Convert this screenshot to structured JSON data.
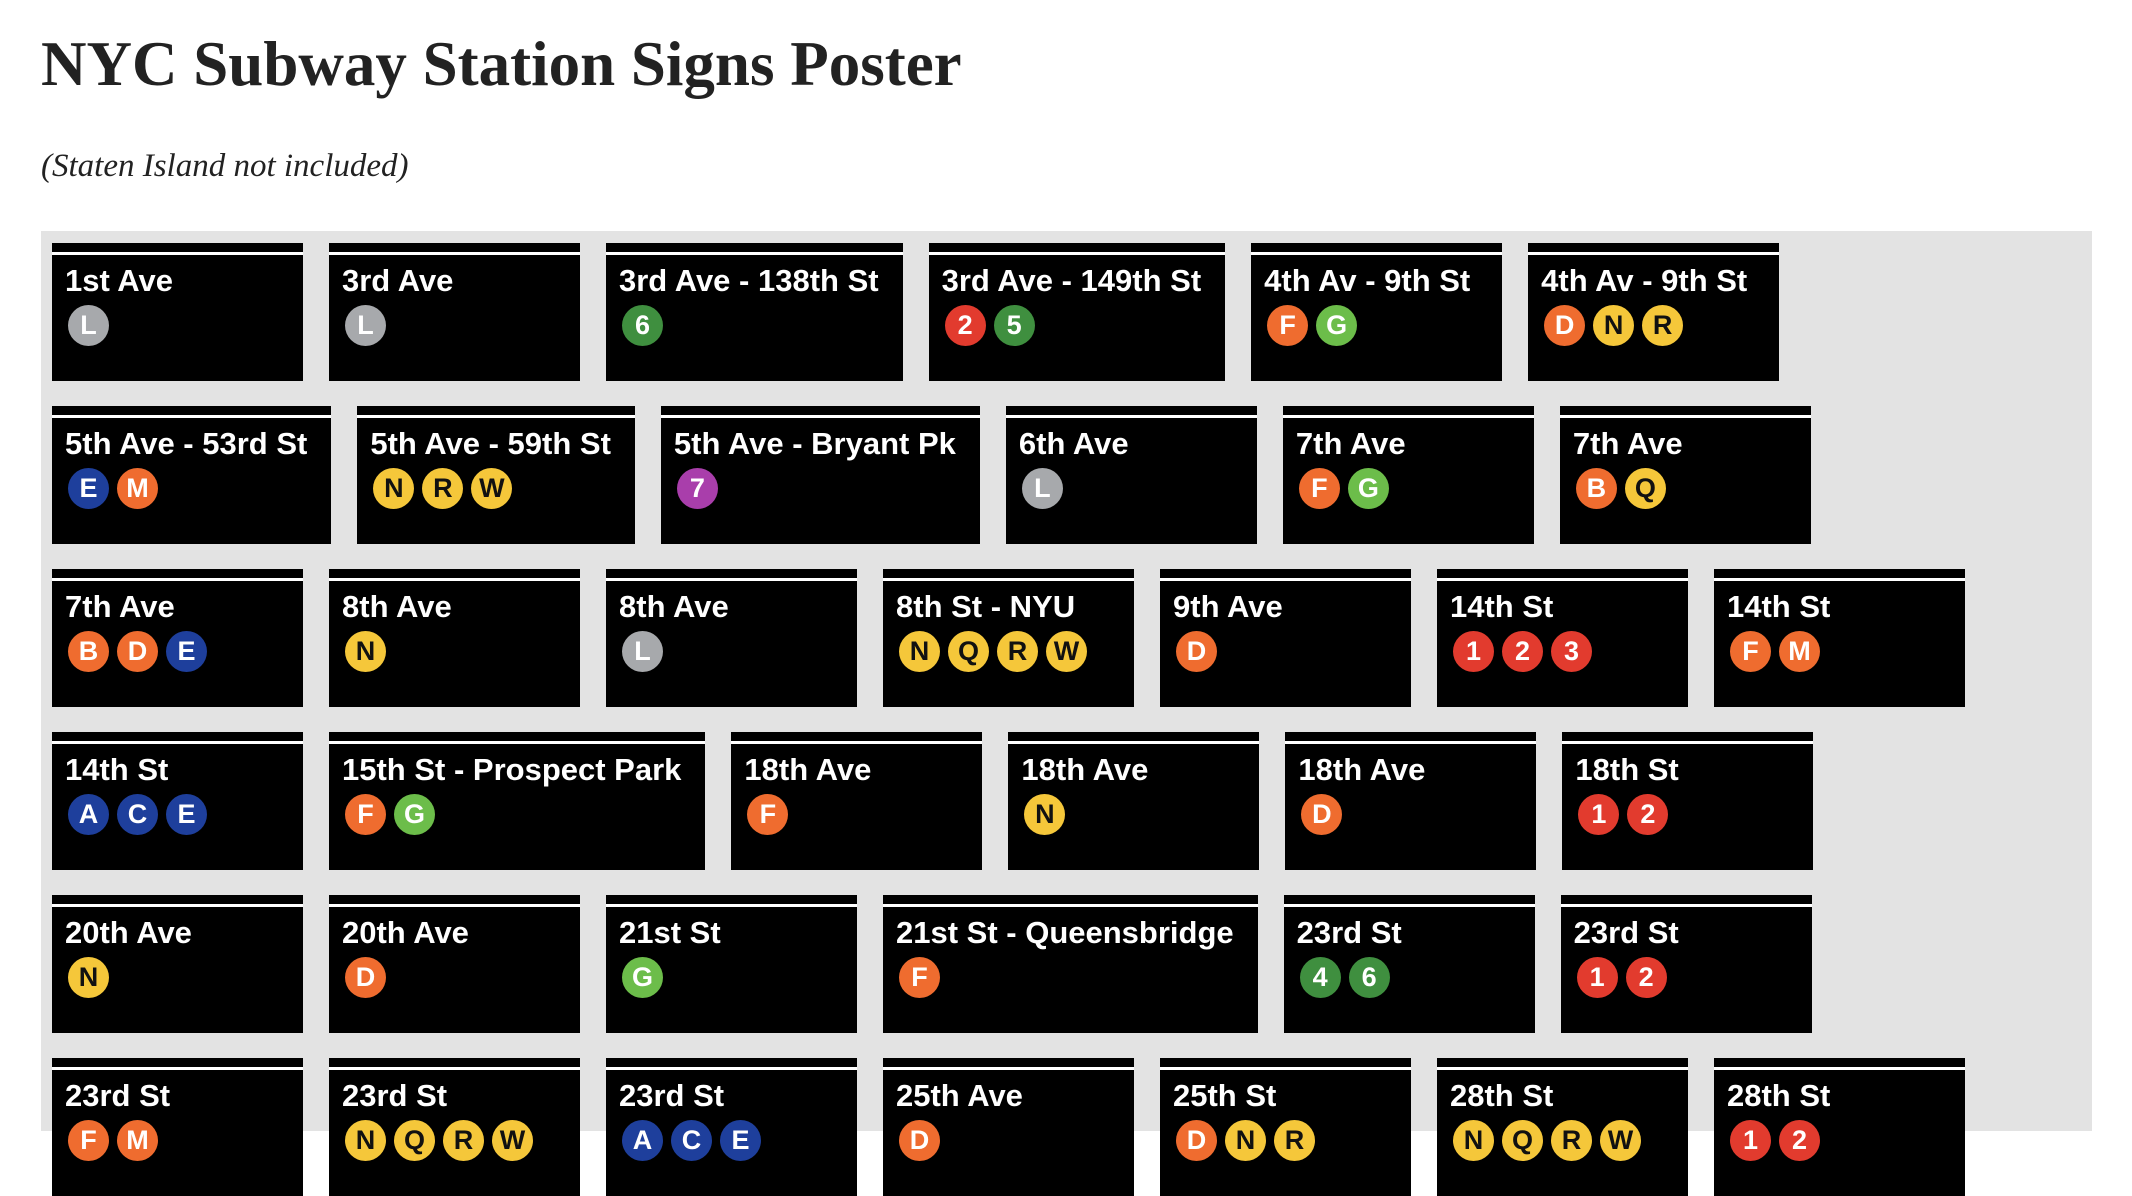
{
  "header": {
    "title": "NYC Subway Station Signs Poster",
    "subtitle": "(Staten Island not included)"
  },
  "line_colors": {
    "L": "#a7a9ac",
    "1": "#e23b2e",
    "2": "#e23b2e",
    "3": "#e23b2e",
    "4": "#3f8f3f",
    "5": "#3f8f3f",
    "6": "#3f8f3f",
    "7": "#a93eab",
    "A": "#1e3f9c",
    "C": "#1e3f9c",
    "E": "#1e3f9c",
    "B": "#ef6c2f",
    "D": "#ef6c2f",
    "F": "#ef6c2f",
    "M": "#ef6c2f",
    "G": "#6cbd4a",
    "N": "#f5c73a",
    "Q": "#f5c73a",
    "R": "#f5c73a",
    "W": "#f5c73a"
  },
  "rows": [
    [
      {
        "name": "1st Ave",
        "lines": [
          "L"
        ]
      },
      {
        "name": "3rd Ave",
        "lines": [
          "L"
        ]
      },
      {
        "name": "3rd Ave - 138th St",
        "lines": [
          "6"
        ]
      },
      {
        "name": "3rd Ave - 149th St",
        "lines": [
          "2",
          "5"
        ]
      },
      {
        "name": "4th Av - 9th St",
        "lines": [
          "F",
          "G"
        ]
      },
      {
        "name": "4th Av - 9th St",
        "lines": [
          "D",
          "N",
          "R"
        ]
      }
    ],
    [
      {
        "name": "5th Ave - 53rd St",
        "lines": [
          "E",
          "M"
        ]
      },
      {
        "name": "5th Ave - 59th St",
        "lines": [
          "N",
          "R",
          "W"
        ]
      },
      {
        "name": "5th Ave - Bryant Pk",
        "lines": [
          "7"
        ]
      },
      {
        "name": "6th Ave",
        "lines": [
          "L"
        ]
      },
      {
        "name": "7th Ave",
        "lines": [
          "F",
          "G"
        ]
      },
      {
        "name": "7th Ave",
        "lines": [
          "B",
          "Q"
        ]
      }
    ],
    [
      {
        "name": "7th Ave",
        "lines": [
          "B",
          "D",
          "E"
        ]
      },
      {
        "name": "8th Ave",
        "lines": [
          "N"
        ]
      },
      {
        "name": "8th Ave",
        "lines": [
          "L"
        ]
      },
      {
        "name": "8th St - NYU",
        "lines": [
          "N",
          "Q",
          "R",
          "W"
        ]
      },
      {
        "name": "9th Ave",
        "lines": [
          "D"
        ]
      },
      {
        "name": "14th St",
        "lines": [
          "1",
          "2",
          "3"
        ]
      },
      {
        "name": "14th St",
        "lines": [
          "F",
          "M"
        ]
      }
    ],
    [
      {
        "name": "14th St",
        "lines": [
          "A",
          "C",
          "E"
        ]
      },
      {
        "name": "15th St - Prospect Park",
        "lines": [
          "F",
          "G"
        ]
      },
      {
        "name": "18th Ave",
        "lines": [
          "F"
        ]
      },
      {
        "name": "18th Ave",
        "lines": [
          "N"
        ]
      },
      {
        "name": "18th Ave",
        "lines": [
          "D"
        ]
      },
      {
        "name": "18th St",
        "lines": [
          "1",
          "2"
        ]
      }
    ],
    [
      {
        "name": "20th Ave",
        "lines": [
          "N"
        ]
      },
      {
        "name": "20th Ave",
        "lines": [
          "D"
        ]
      },
      {
        "name": "21st St",
        "lines": [
          "G"
        ]
      },
      {
        "name": "21st St - Queensbridge",
        "lines": [
          "F"
        ]
      },
      {
        "name": "23rd St",
        "lines": [
          "4",
          "6"
        ]
      },
      {
        "name": "23rd St",
        "lines": [
          "1",
          "2"
        ]
      }
    ],
    [
      {
        "name": "23rd St",
        "lines": [
          "F",
          "M"
        ]
      },
      {
        "name": "23rd St",
        "lines": [
          "N",
          "Q",
          "R",
          "W"
        ]
      },
      {
        "name": "23rd St",
        "lines": [
          "A",
          "C",
          "E"
        ]
      },
      {
        "name": "25th Ave",
        "lines": [
          "D"
        ]
      },
      {
        "name": "25th St",
        "lines": [
          "D",
          "N",
          "R"
        ]
      },
      {
        "name": "28th St",
        "lines": [
          "N",
          "Q",
          "R",
          "W"
        ]
      },
      {
        "name": "28th St",
        "lines": [
          "1",
          "2"
        ]
      }
    ]
  ]
}
